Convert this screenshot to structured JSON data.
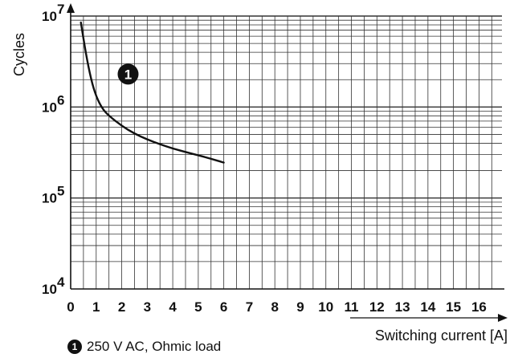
{
  "chart_data": {
    "type": "line",
    "xlabel": "Switching current [A]",
    "ylabel": "Cycles",
    "x_ticks": [
      "0",
      "1",
      "2",
      "3",
      "4",
      "5",
      "6",
      "7",
      "8",
      "9",
      "10",
      "11",
      "12",
      "13",
      "14",
      "15",
      "16"
    ],
    "xlim": [
      0,
      16.9
    ],
    "y_scale": "log",
    "ylim": [
      10000,
      10000000
    ],
    "y_ticks": [
      {
        "value": 10000,
        "base": "10",
        "exp": "4"
      },
      {
        "value": 100000,
        "base": "10",
        "exp": "5"
      },
      {
        "value": 1000000,
        "base": "10",
        "exp": "6"
      },
      {
        "value": 10000000,
        "base": "10",
        "exp": "7"
      }
    ],
    "grid": true,
    "series": [
      {
        "name": "250 V AC, Ohmic load",
        "marker_label": "1",
        "color": "#111111",
        "points": [
          [
            0.4,
            8500000
          ],
          [
            0.6,
            3800000
          ],
          [
            0.8,
            2000000
          ],
          [
            1.0,
            1300000
          ],
          [
            1.25,
            950000
          ],
          [
            1.5,
            800000
          ],
          [
            2.0,
            620000
          ],
          [
            2.5,
            510000
          ],
          [
            3.0,
            440000
          ],
          [
            3.5,
            390000
          ],
          [
            4.0,
            350000
          ],
          [
            4.5,
            320000
          ],
          [
            5.0,
            295000
          ],
          [
            5.5,
            270000
          ],
          [
            6.0,
            245000
          ]
        ]
      }
    ]
  }
}
